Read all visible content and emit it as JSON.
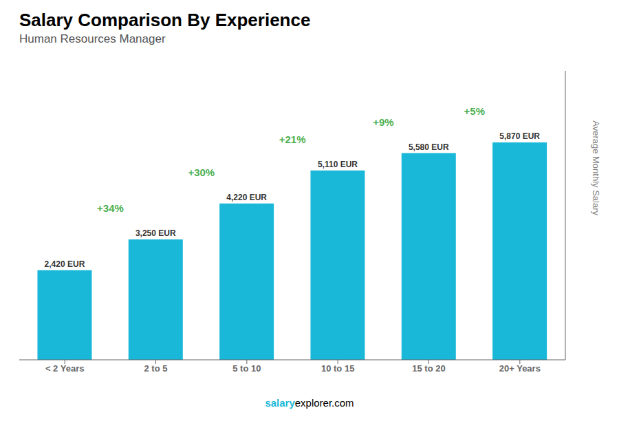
{
  "chart_data": {
    "type": "bar",
    "title": "Salary Comparison By Experience",
    "subtitle": "Human Resources Manager",
    "categories": [
      "< 2 Years",
      "2 to 5",
      "5 to 10",
      "10 to 15",
      "15 to 20",
      "20+ Years"
    ],
    "values": [
      2420,
      3250,
      4220,
      5110,
      5580,
      5870
    ],
    "value_labels": [
      "2,420 EUR",
      "3,250 EUR",
      "4,220 EUR",
      "5,110 EUR",
      "5,580 EUR",
      "5,870 EUR"
    ],
    "data_labels": true,
    "annotations": [
      "+34%",
      "+30%",
      "+21%",
      "+9%",
      "+5%"
    ],
    "color": "#1ab8d8",
    "ylabel": "Average Monthly Salary",
    "ylim": [
      0,
      7800
    ],
    "tick_labels": "x",
    "grid": false,
    "footer": [
      "salary",
      "explorer.com"
    ]
  }
}
